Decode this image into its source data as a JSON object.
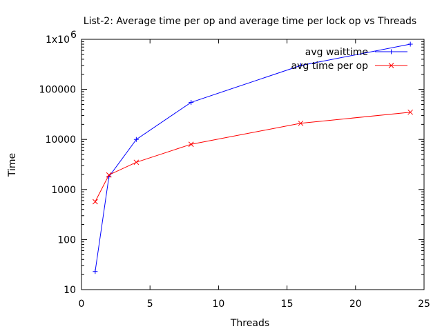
{
  "chart_data": {
    "type": "line",
    "title": "List-2: Average time per op and average time per lock op vs Threads",
    "xlabel": "Threads",
    "ylabel": "Time",
    "xlim": [
      0,
      25
    ],
    "ylim": [
      10,
      1000000
    ],
    "yscale": "log",
    "grid": false,
    "legend_position": "top-right",
    "x_ticks": [
      {
        "value": 0,
        "label": "0"
      },
      {
        "value": 5,
        "label": "5"
      },
      {
        "value": 10,
        "label": "10"
      },
      {
        "value": 15,
        "label": "15"
      },
      {
        "value": 20,
        "label": "20"
      },
      {
        "value": 25,
        "label": "25"
      }
    ],
    "y_ticks": [
      {
        "value": 10,
        "label": "10"
      },
      {
        "value": 100,
        "label": "100"
      },
      {
        "value": 1000,
        "label": "1000"
      },
      {
        "value": 10000,
        "label": "10000"
      },
      {
        "value": 100000,
        "label": "100000"
      }
    ],
    "y_top_tick": {
      "value": 1000000,
      "base": "1x10",
      "exponent": "6"
    },
    "series": [
      {
        "name": "avg waittime",
        "color": "#0000ff",
        "marker": "plus",
        "x": [
          1,
          2,
          4,
          8,
          16,
          24
        ],
        "y": [
          23,
          1800,
          10000,
          55000,
          300000,
          800000
        ]
      },
      {
        "name": "avg time per op",
        "color": "#ff0000",
        "marker": "cross",
        "x": [
          1,
          2,
          4,
          8,
          16,
          24
        ],
        "y": [
          570,
          1950,
          3500,
          8000,
          21000,
          35000
        ]
      }
    ]
  }
}
